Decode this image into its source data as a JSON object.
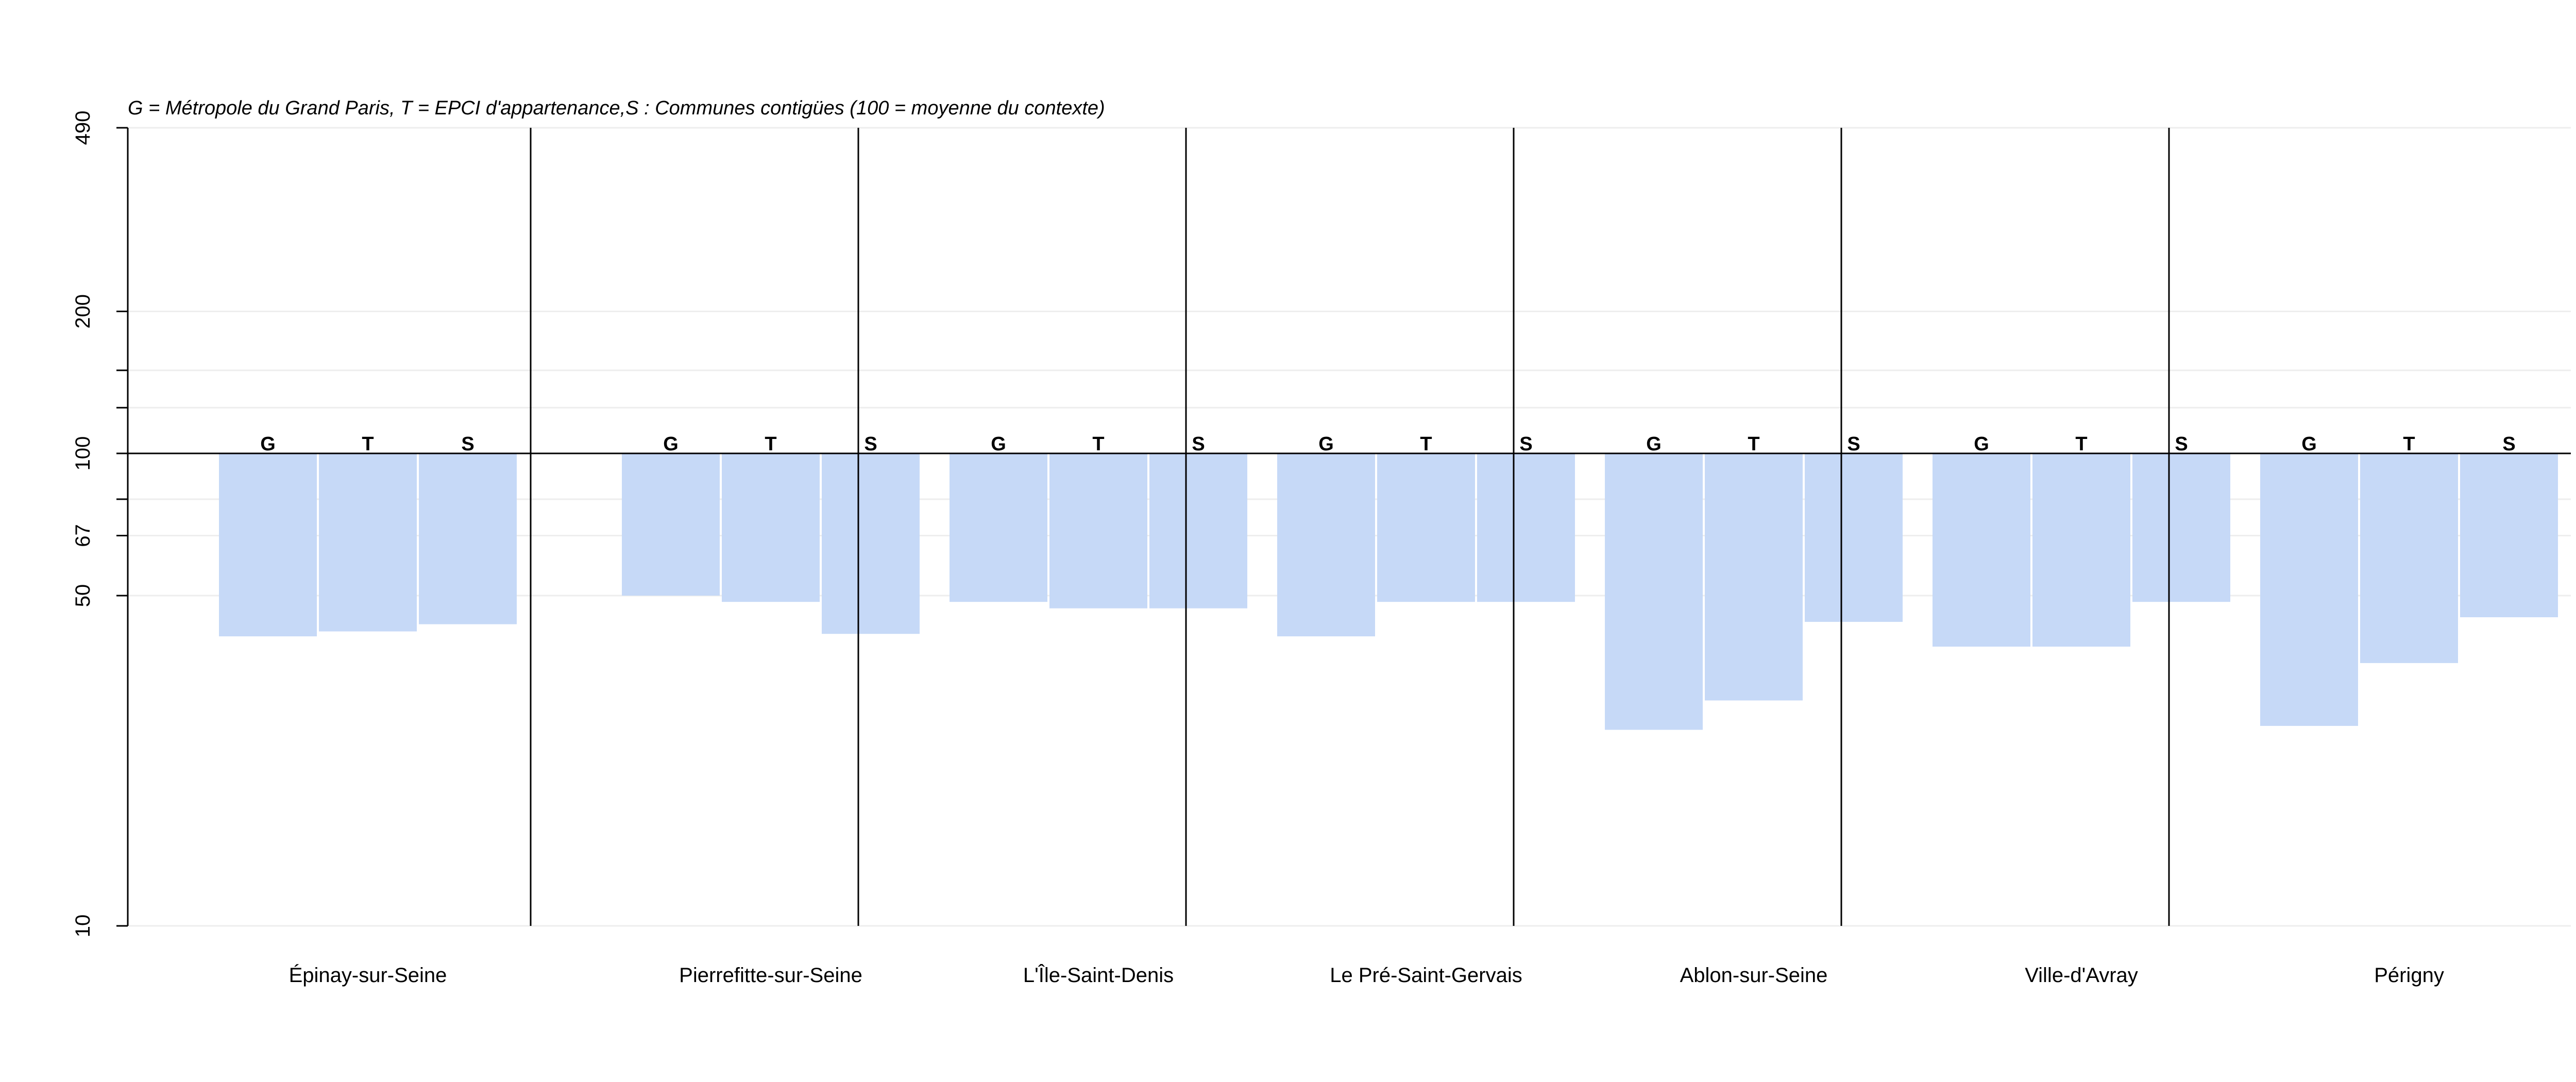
{
  "chart_data": {
    "type": "bar",
    "subtitle": "G = Métropole du Grand Paris, T = EPCI d'appartenance,S : Communes contigües (100 = moyenne du contexte)",
    "scale": "log",
    "baseline": 100,
    "ylim": [
      10,
      490
    ],
    "yticks": [
      10,
      50,
      67,
      100,
      200,
      490
    ],
    "ytick_labels": [
      "10",
      "50",
      "67",
      "100",
      "200",
      "490"
    ],
    "gridlines": [
      10,
      50,
      67,
      80,
      100,
      125,
      150,
      200,
      490
    ],
    "grid": true,
    "bar_color": "#c6d9f7",
    "bar_letters": [
      "G",
      "T",
      "S"
    ],
    "categories": [
      "Épinay-sur-Seine",
      "Pierrefitte-sur-Seine",
      "L'Île-Saint-Denis",
      "Le Pré-Saint-Gervais",
      "Ablon-sur-Seine",
      "Ville-d'Avray",
      "Périgny"
    ],
    "series": [
      {
        "name": "G",
        "values": [
          41,
          50,
          48.5,
          41,
          26,
          39,
          26.5
        ]
      },
      {
        "name": "T",
        "values": [
          42,
          48.5,
          47,
          48.5,
          30,
          39,
          36
        ]
      },
      {
        "name": "S",
        "values": [
          43.5,
          41.5,
          47,
          48.5,
          44,
          48.5,
          45
        ]
      }
    ]
  }
}
